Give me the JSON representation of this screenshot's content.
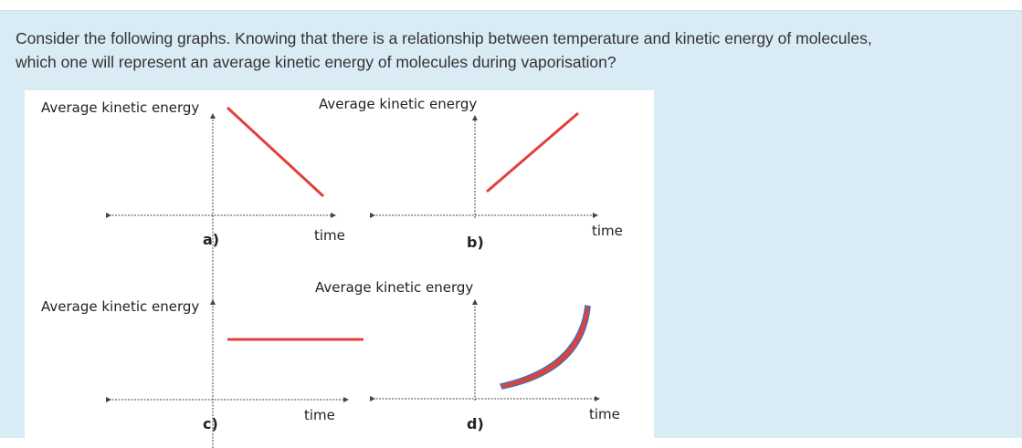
{
  "question": {
    "line1": "Consider the following graphs. Knowing that there is a relationship between temperature and kinetic energy of molecules,",
    "line2": "which one will represent an average kinetic energy of molecules during vaporisation?"
  },
  "graphs": {
    "a": {
      "letter": "a)",
      "ylabel": "Average kinetic energy",
      "xlabel": "time",
      "trend": "decreasing"
    },
    "b": {
      "letter": "b)",
      "ylabel": "Average kinetic energy",
      "xlabel": "time",
      "trend": "increasing"
    },
    "c": {
      "letter": "c)",
      "ylabel": "Average kinetic energy",
      "xlabel": "time",
      "trend": "constant"
    },
    "d": {
      "letter": "d)",
      "ylabel": "Average kinetic energy",
      "xlabel": "time",
      "trend": "increasing-curve"
    }
  },
  "colors": {
    "panel_bg": "#d9ebf5",
    "line": "#e0413a",
    "curve_outline": "#4a6fb3",
    "axis": "#444444",
    "text": "#333333"
  }
}
